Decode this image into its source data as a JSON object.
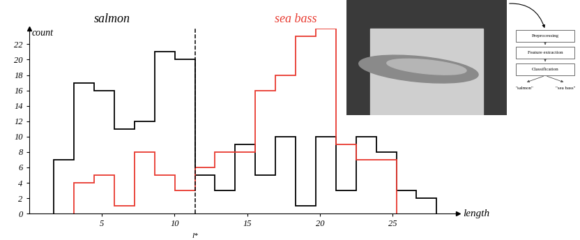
{
  "chart_data": {
    "type": "histogram",
    "xlabel": "length",
    "ylabel": "count",
    "series": [
      {
        "name": "salmon",
        "color": "#000000",
        "bins": [
          1.7,
          3.09,
          4.47,
          5.86,
          7.24,
          8.63,
          10.01,
          11.4,
          12.78,
          14.17,
          15.55,
          16.94,
          18.32,
          19.71,
          21.09,
          22.48,
          23.86,
          25.25,
          26.63,
          28.02
        ],
        "values": [
          7,
          17,
          16,
          11,
          12,
          21,
          20,
          5,
          3,
          9,
          5,
          10,
          1,
          10,
          3,
          10,
          8,
          3,
          2
        ]
      },
      {
        "name": "sea bass",
        "color": "#e8392f",
        "bins": [
          3.09,
          4.47,
          5.86,
          7.24,
          8.63,
          10.01,
          11.4,
          12.78,
          14.17,
          15.55,
          16.94,
          18.32,
          19.71,
          21.09,
          22.48,
          23.86,
          25.25
        ],
        "values": [
          4,
          5,
          1,
          8,
          5,
          3,
          6,
          8,
          8,
          16,
          18,
          23,
          24,
          9,
          7,
          7
        ]
      }
    ],
    "xlim": [
      0,
      29.5
    ],
    "ylim": [
      0,
      24
    ],
    "xticks": [
      5,
      10,
      15,
      20,
      25
    ],
    "yticks": [
      0,
      2,
      4,
      6,
      8,
      10,
      12,
      14,
      16,
      18,
      20,
      22
    ],
    "annotations": [
      {
        "text": "l*",
        "x": 11.4
      }
    ]
  },
  "diagram": {
    "stages": [
      "Preprocessing",
      "Feature extraction",
      "Classification"
    ],
    "outputs": [
      "\"salmon\"",
      "\"sea bass\""
    ]
  }
}
